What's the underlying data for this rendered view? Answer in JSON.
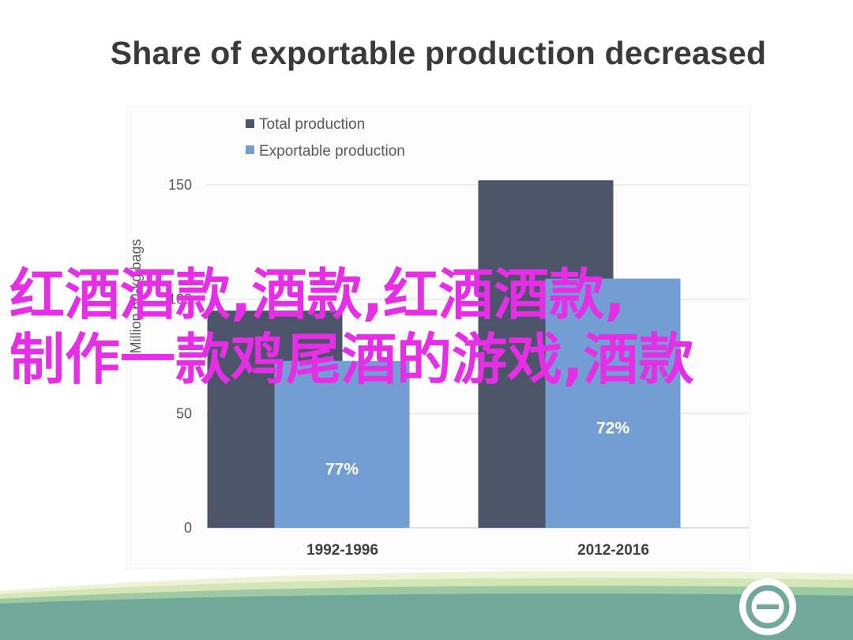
{
  "chart_data": {
    "type": "bar",
    "title": "Share of exportable production decreased",
    "ylabel": "Million 60-kg bags",
    "xlabel": "",
    "ylim": [
      0,
      150
    ],
    "yticks": [
      "0",
      "50",
      "100",
      "150"
    ],
    "categories": [
      "1992-1996",
      "2012-2016"
    ],
    "series": [
      {
        "name": "Total production",
        "values": [
          95,
          152
        ],
        "color": "#4b5468"
      },
      {
        "name": "Exportable production",
        "values": [
          73,
          109
        ],
        "color": "#739ed3",
        "labels": [
          "77%",
          "72%"
        ]
      }
    ],
    "legend_position": "top-left",
    "grid": true
  },
  "watermark": {
    "line1": "红酒酒款,酒款,红酒酒款,",
    "line2": "制作一款鸡尾酒的游戏,酒款",
    "color": "#e62ee6"
  },
  "footer": {
    "band_colors": [
      "#eef2d6",
      "#d4e6b5",
      "#9dc9a3",
      "#71a89a"
    ],
    "logo_icon": "circle-logo-icon"
  }
}
